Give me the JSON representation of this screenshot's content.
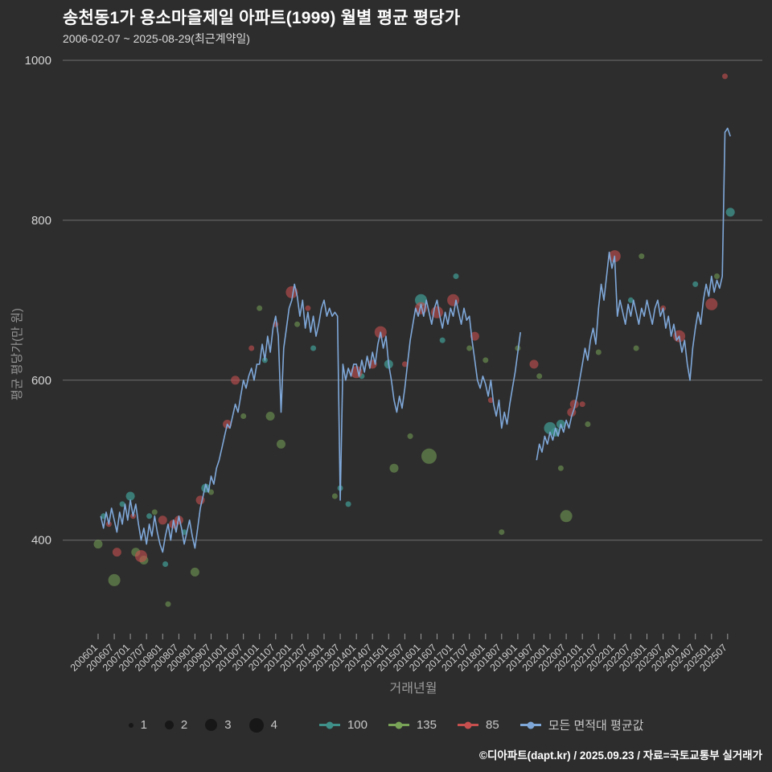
{
  "header": {
    "title": "송천동1가 용소마을제일 아파트(1999) 월별 평균 평당가",
    "subtitle": "2006-02-07 ~ 2025-08-29(최근계약일)"
  },
  "footer": {
    "credit": "©디아파트(dapt.kr) / 2025.09.23 / 자료=국토교통부 실거래가"
  },
  "colors": {
    "background": "#2d2d2d",
    "grid": "#6f6f6f",
    "tick_text": "#d6d6d6",
    "teal": "#3e9089",
    "green": "#79a457",
    "red": "#c7504f",
    "blue_line": "#7fa8d9"
  },
  "legend": {
    "sizes": [
      1,
      2,
      3,
      4
    ],
    "series": [
      {
        "label": "100",
        "color": "#3e9089"
      },
      {
        "label": "135",
        "color": "#79a457"
      },
      {
        "label": "85",
        "color": "#c7504f"
      },
      {
        "label": "모든 면적대 평균값",
        "color": "#7fa8d9"
      }
    ]
  },
  "chart_data": {
    "type": "scatter+line",
    "title": "송천동1가 용소마을제일 아파트(1999) 월별 평균 평당가",
    "xlabel": "거래년월",
    "ylabel": "평균 평당가(만 원)",
    "ylim": [
      280,
      1000
    ],
    "yticks": [
      400,
      600,
      800,
      1000
    ],
    "x_ticks": [
      "200601",
      "200607",
      "200701",
      "200707",
      "200801",
      "200807",
      "200901",
      "200907",
      "201001",
      "201007",
      "201101",
      "201107",
      "201201",
      "201207",
      "201301",
      "201307",
      "201401",
      "201407",
      "201501",
      "201507",
      "201601",
      "201607",
      "201701",
      "201707",
      "201801",
      "201807",
      "201901",
      "201907",
      "202001",
      "202007",
      "202101",
      "202107",
      "202201",
      "202207",
      "202301",
      "202307",
      "202401",
      "202407",
      "202501",
      "202507"
    ],
    "grid": true,
    "legend_position": "bottom",
    "series": [
      {
        "name": "100",
        "color": "#3e9089",
        "opacity": 0.8,
        "points": [
          [
            "2006-03",
            430,
            1
          ],
          [
            "2006-10",
            445,
            1
          ],
          [
            "2007-01",
            455,
            2
          ],
          [
            "2007-08",
            430,
            1
          ],
          [
            "2008-02",
            370,
            1
          ],
          [
            "2008-09",
            410,
            1
          ],
          [
            "2009-05",
            465,
            2
          ],
          [
            "2011-03",
            625,
            1
          ],
          [
            "2012-09",
            640,
            1
          ],
          [
            "2013-07",
            465,
            1
          ],
          [
            "2013-10",
            445,
            1
          ],
          [
            "2014-03",
            605,
            1
          ],
          [
            "2015-01",
            620,
            2
          ],
          [
            "2016-01",
            700,
            3
          ],
          [
            "2016-09",
            650,
            1
          ],
          [
            "2017-02",
            730,
            1
          ],
          [
            "2020-01",
            540,
            3
          ],
          [
            "2020-03",
            535,
            2
          ],
          [
            "2020-05",
            545,
            2
          ],
          [
            "2022-07",
            700,
            1
          ],
          [
            "2024-07",
            720,
            1
          ],
          [
            "2025-08",
            810,
            2
          ]
        ]
      },
      {
        "name": "135",
        "color": "#79a457",
        "opacity": 0.55,
        "points": [
          [
            "2006-01",
            395,
            2
          ],
          [
            "2006-07",
            350,
            3
          ],
          [
            "2007-03",
            385,
            2
          ],
          [
            "2007-06",
            375,
            2
          ],
          [
            "2007-10",
            435,
            1
          ],
          [
            "2008-03",
            320,
            1
          ],
          [
            "2009-01",
            360,
            2
          ],
          [
            "2009-07",
            460,
            1
          ],
          [
            "2010-07",
            555,
            1
          ],
          [
            "2011-01",
            690,
            1
          ],
          [
            "2011-05",
            555,
            2
          ],
          [
            "2011-09",
            520,
            2
          ],
          [
            "2012-03",
            670,
            1
          ],
          [
            "2013-05",
            455,
            1
          ],
          [
            "2015-03",
            490,
            2
          ],
          [
            "2015-09",
            530,
            1
          ],
          [
            "2016-04",
            505,
            4
          ],
          [
            "2017-07",
            640,
            1
          ],
          [
            "2018-01",
            625,
            1
          ],
          [
            "2018-07",
            410,
            1
          ],
          [
            "2019-01",
            640,
            1
          ],
          [
            "2019-09",
            605,
            1
          ],
          [
            "2020-05",
            490,
            1
          ],
          [
            "2020-07",
            430,
            3
          ],
          [
            "2021-03",
            545,
            1
          ],
          [
            "2021-07",
            635,
            1
          ],
          [
            "2022-09",
            640,
            1
          ],
          [
            "2022-11",
            755,
            1
          ],
          [
            "2025-03",
            730,
            1
          ]
        ]
      },
      {
        "name": "85",
        "color": "#c7504f",
        "opacity": 0.6,
        "points": [
          [
            "2006-05",
            420,
            1
          ],
          [
            "2006-08",
            385,
            2
          ],
          [
            "2007-02",
            430,
            1
          ],
          [
            "2007-05",
            380,
            3
          ],
          [
            "2008-01",
            425,
            2
          ],
          [
            "2008-05",
            420,
            2
          ],
          [
            "2008-07",
            425,
            2
          ],
          [
            "2009-03",
            450,
            2
          ],
          [
            "2010-01",
            545,
            2
          ],
          [
            "2010-04",
            600,
            2
          ],
          [
            "2010-10",
            640,
            1
          ],
          [
            "2011-07",
            670,
            1
          ],
          [
            "2012-01",
            710,
            3
          ],
          [
            "2012-07",
            690,
            1
          ],
          [
            "2014-01",
            610,
            3
          ],
          [
            "2014-07",
            620,
            2
          ],
          [
            "2014-10",
            660,
            3
          ],
          [
            "2015-07",
            620,
            1
          ],
          [
            "2016-01",
            690,
            3
          ],
          [
            "2016-07",
            685,
            3
          ],
          [
            "2017-01",
            700,
            3
          ],
          [
            "2017-09",
            655,
            2
          ],
          [
            "2018-03",
            575,
            1
          ],
          [
            "2019-07",
            620,
            2
          ],
          [
            "2020-09",
            560,
            2
          ],
          [
            "2020-10",
            570,
            2
          ],
          [
            "2021-01",
            570,
            1
          ],
          [
            "2022-01",
            755,
            3
          ],
          [
            "2023-07",
            690,
            1
          ],
          [
            "2024-01",
            655,
            3
          ],
          [
            "2025-01",
            695,
            3
          ],
          [
            "2025-06",
            980,
            1
          ]
        ]
      }
    ],
    "line": {
      "name": "모든 면적대 평균값",
      "color": "#7fa8d9",
      "segments": [
        {
          "start": "2006-02",
          "values": [
            430,
            415,
            435,
            420,
            440,
            425,
            410,
            435,
            420,
            445,
            425,
            450,
            430,
            445,
            420,
            400,
            415,
            395,
            420,
            405,
            430,
            410,
            395,
            385,
            405,
            420,
            400,
            425,
            410,
            430,
            415,
            395,
            410,
            425,
            405,
            390,
            415,
            440,
            455,
            470,
            460,
            480,
            470,
            490,
            500,
            515,
            530,
            545,
            540,
            555,
            570,
            560,
            580,
            600,
            590,
            605,
            615,
            600,
            620,
            620,
            645,
            625,
            655,
            635,
            665,
            680,
            655,
            560,
            640,
            665,
            690,
            700,
            720,
            705,
            680,
            700,
            665,
            685,
            660,
            680,
            655,
            670,
            690,
            700,
            680,
            690,
            680,
            685,
            680,
            450,
            620,
            600,
            615,
            605,
            620,
            620,
            605,
            625,
            610,
            630,
            615,
            635,
            620,
            645,
            660,
            640,
            655,
            620,
            600,
            575,
            560,
            580,
            565,
            590,
            620,
            650,
            670,
            690,
            680,
            695,
            680,
            700,
            685,
            670,
            690,
            700,
            680,
            665,
            685,
            670,
            690,
            680,
            700,
            685,
            670,
            690,
            675,
            680,
            650,
            625,
            600,
            590,
            605,
            595,
            580,
            600,
            570,
            555,
            575,
            540,
            560,
            545,
            570,
            590,
            610,
            635,
            660
          ]
        },
        {
          "start": "2019-08",
          "values": [
            500,
            520,
            510,
            530,
            520,
            535,
            525,
            540,
            530,
            545,
            535,
            550,
            540,
            555,
            565,
            580,
            600,
            620,
            640,
            625,
            650,
            665,
            645,
            690,
            720,
            700,
            730,
            760,
            740,
            755,
            680,
            700,
            685,
            670,
            695,
            680,
            700,
            685,
            670,
            690,
            680,
            700,
            685,
            670,
            690,
            700,
            680,
            690,
            665,
            680,
            655,
            670,
            650,
            655,
            635,
            650,
            620,
            600,
            640,
            665,
            685,
            670,
            700,
            720,
            705,
            730,
            710,
            725,
            715,
            730,
            910,
            915,
            905
          ]
        }
      ]
    }
  }
}
